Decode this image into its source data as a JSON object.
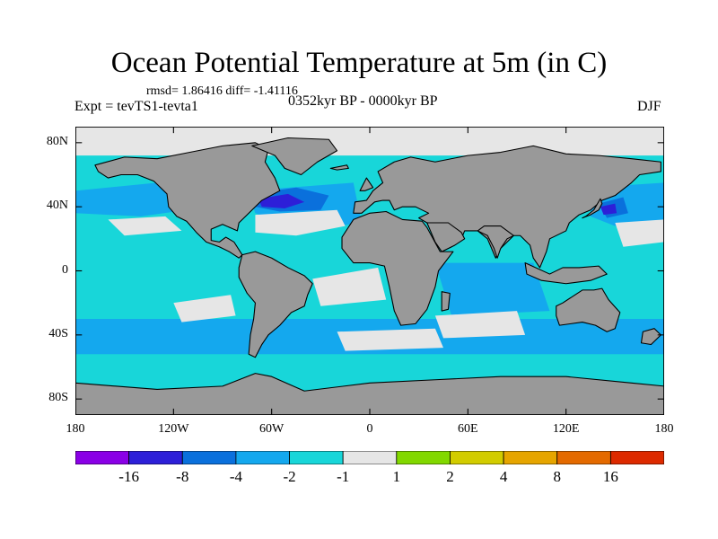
{
  "title": "Ocean Potential Temperature at 5m (in C)",
  "stats_text": "rmsd= 1.86416 diff= -1.41116",
  "experiment_text": "Expt = tevTS1-tevta1",
  "period_text": "0352kyr BP - 0000kyr BP",
  "season_text": "DJF",
  "map": {
    "projection": "cylindrical equidistant",
    "lon_range": [
      -180,
      180
    ],
    "lat_range": [
      -90,
      90
    ],
    "land_color": "#999999",
    "coastline_color": "#000000",
    "x_ticks": [
      {
        "value": -180,
        "label": "180"
      },
      {
        "value": -120,
        "label": "120W"
      },
      {
        "value": -60,
        "label": "60W"
      },
      {
        "value": 0,
        "label": "0"
      },
      {
        "value": 60,
        "label": "60E"
      },
      {
        "value": 120,
        "label": "120E"
      },
      {
        "value": 180,
        "label": "180"
      }
    ],
    "y_ticks": [
      {
        "value": 80,
        "label": "80N"
      },
      {
        "value": 40,
        "label": "40N"
      },
      {
        "value": 0,
        "label": "0"
      },
      {
        "value": -40,
        "label": "40S"
      },
      {
        "value": -80,
        "label": "80S"
      }
    ]
  },
  "colorbar": {
    "bins": [
      {
        "color": "#8a00e6"
      },
      {
        "color": "#2d1fd8"
      },
      {
        "color": "#0a70dc"
      },
      {
        "color": "#14a8ee"
      },
      {
        "color": "#18d6d9"
      },
      {
        "color": "#e6e6e6"
      },
      {
        "color": "#82d800"
      },
      {
        "color": "#d2cc00"
      },
      {
        "color": "#e6a500"
      },
      {
        "color": "#e46a00"
      },
      {
        "color": "#dd2a00"
      }
    ],
    "boundary_labels": [
      "-16",
      "-8",
      "-4",
      "-2",
      "-1",
      "1",
      "2",
      "4",
      "8",
      "16"
    ]
  }
}
